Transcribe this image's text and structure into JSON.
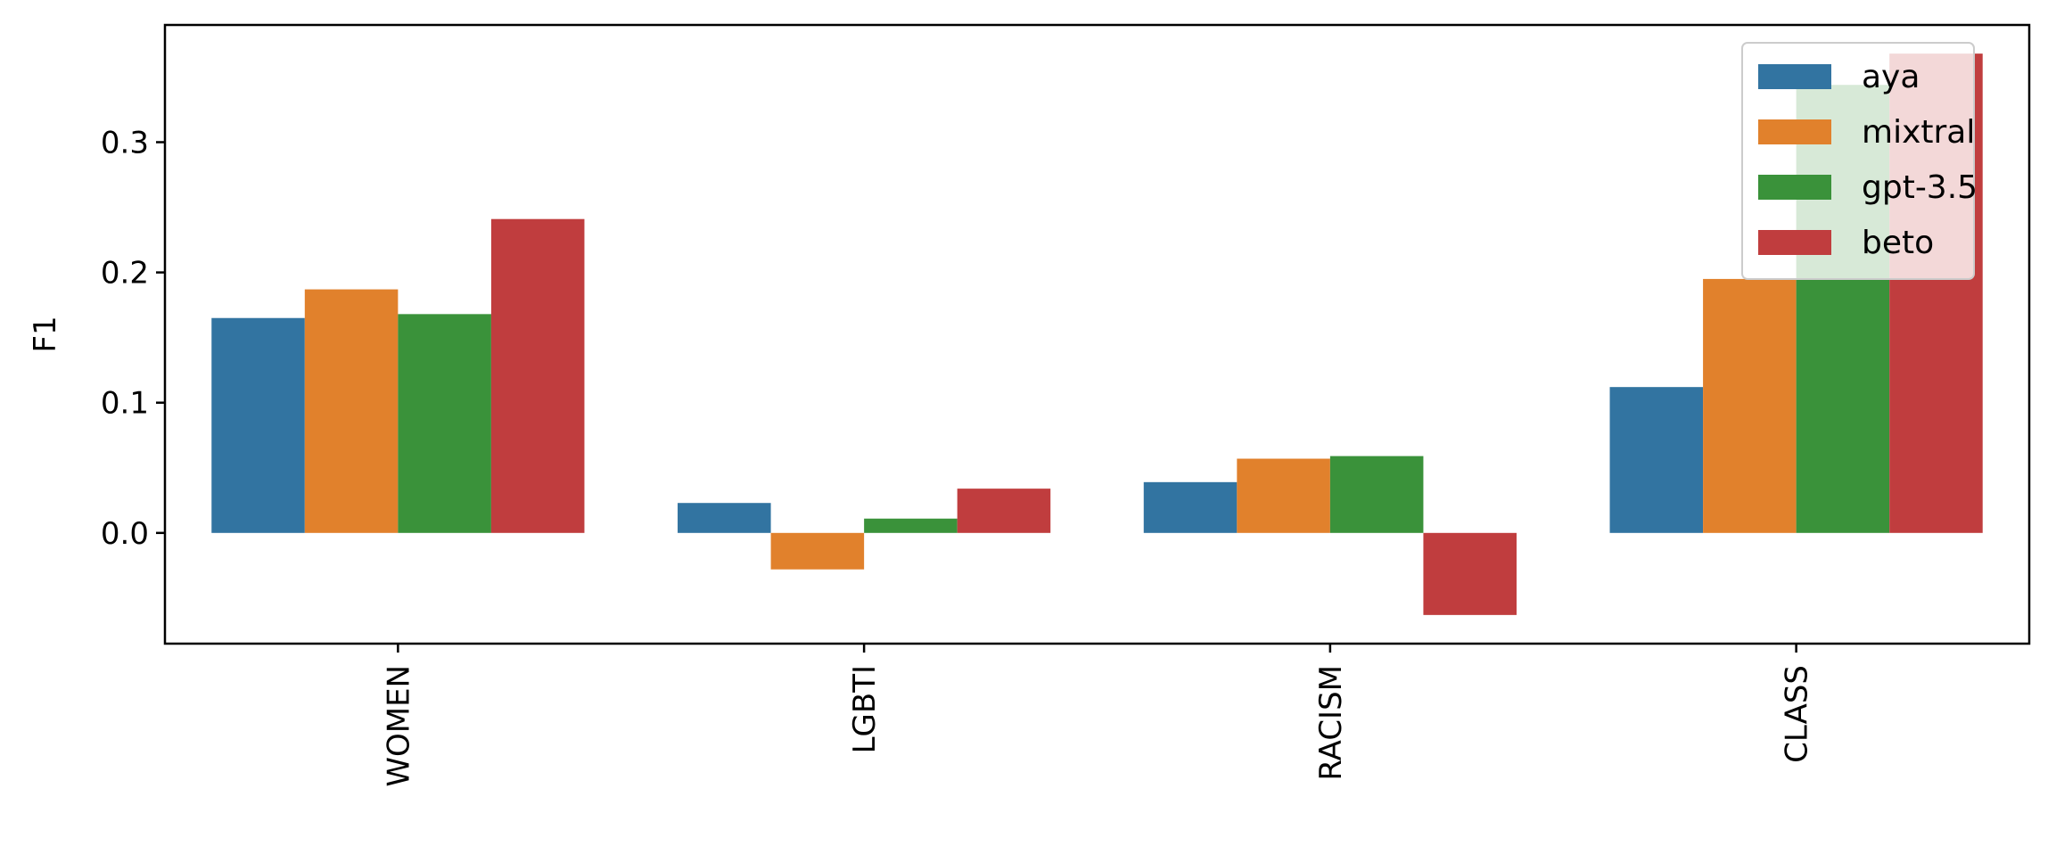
{
  "chart_data": {
    "type": "bar",
    "title": "",
    "xlabel": "",
    "ylabel": "F1",
    "categories": [
      "WOMEN",
      "LGBTI",
      "RACISM",
      "CLASS"
    ],
    "series": [
      {
        "name": "aya",
        "color": "#3274a1",
        "values": [
          0.165,
          0.023,
          0.039,
          0.112
        ]
      },
      {
        "name": "mixtral",
        "color": "#e1812c",
        "values": [
          0.187,
          -0.028,
          0.057,
          0.195
        ]
      },
      {
        "name": "gpt-3.5",
        "color": "#3a923a",
        "values": [
          0.168,
          0.011,
          0.059,
          0.344
        ]
      },
      {
        "name": "beto",
        "color": "#c03d3e",
        "values": [
          0.241,
          0.034,
          -0.063,
          0.368
        ]
      }
    ],
    "ylim": [
      -0.085,
      0.39
    ],
    "yticks": [
      0.0,
      0.1,
      0.2,
      0.3
    ],
    "ytick_labels": [
      "0.0",
      "0.1",
      "0.2",
      "0.3"
    ],
    "grid": false,
    "legend_position": "top-right"
  }
}
